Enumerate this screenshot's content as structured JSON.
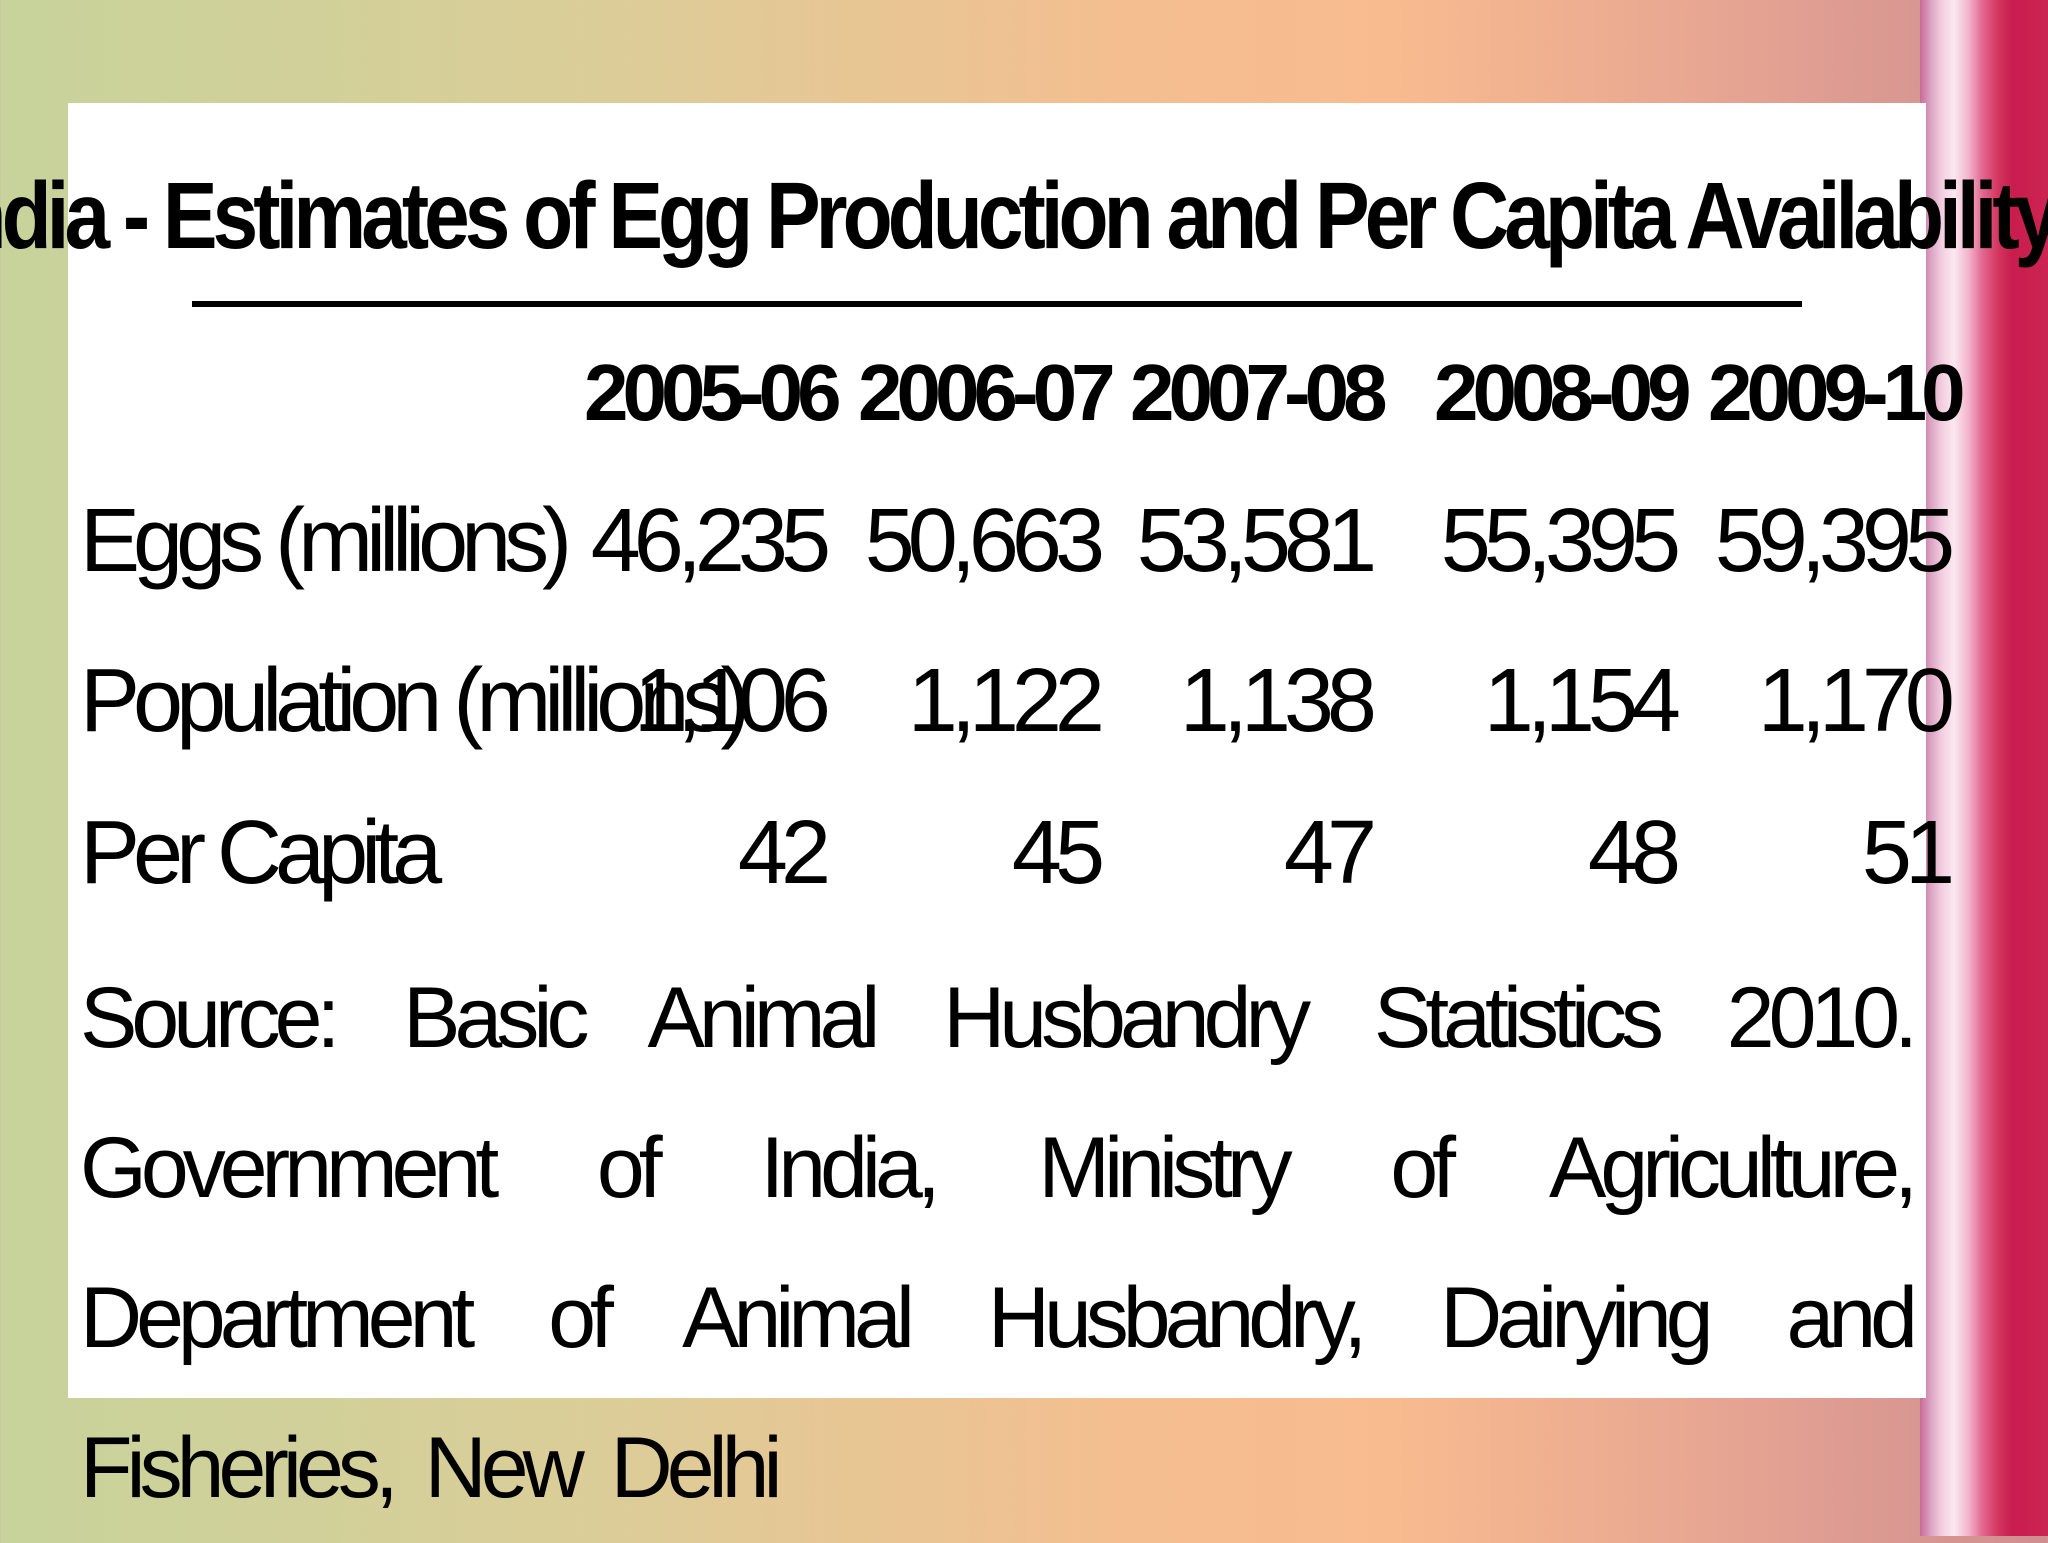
{
  "title": "India - Estimates of Egg Production and Per Capita Availability",
  "columns": [
    "2005-06",
    "2006-07",
    "2007-08",
    "2008-09",
    "2009-10"
  ],
  "rows": [
    {
      "label": "Eggs (millions)",
      "values": [
        "46,235",
        "50,663",
        "53,581",
        "55,395",
        "59,395"
      ]
    },
    {
      "label": "Population (millions)",
      "values": [
        "1,106",
        "1,122",
        "1,138",
        "1,154",
        "1,170"
      ]
    },
    {
      "label": "Per Capita",
      "values": [
        "42",
        "45",
        "47",
        "48",
        "51"
      ]
    }
  ],
  "source": "Source: Basic Animal Husbandry Statistics 2010. Government of India, Ministry of Agriculture, Department of Animal Husbandry, Dairying and Fisheries, New Delhi",
  "colors": {
    "slide_background": "#ffffff",
    "text": "#000000",
    "accent_stripe": "#c81d4e"
  }
}
